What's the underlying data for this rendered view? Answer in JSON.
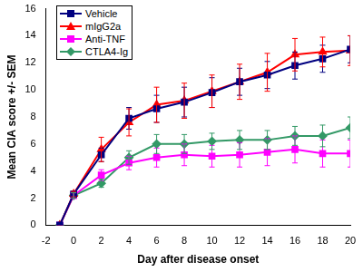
{
  "chart_data": {
    "type": "line",
    "x_label": "Day after disease onset",
    "y_label": "Mean CIA score +/- SEM",
    "x": [
      -1,
      0,
      2,
      4,
      6,
      8,
      10,
      12,
      14,
      16,
      18,
      20
    ],
    "series": [
      {
        "name": "Vehicle",
        "color": "#000080",
        "marker": "square",
        "values": [
          0,
          2.3,
          5.2,
          7.9,
          8.6,
          9.1,
          9.8,
          10.6,
          11.1,
          11.8,
          12.3,
          13.0
        ],
        "errors": [
          0,
          0.2,
          0.5,
          0.8,
          1.0,
          1.1,
          1.1,
          1.0,
          1.0,
          1.0,
          1.0,
          1.0
        ]
      },
      {
        "name": "mIgG2a",
        "color": "#ff0000",
        "marker": "triangle",
        "values": [
          0,
          2.3,
          5.6,
          7.6,
          8.9,
          9.2,
          9.9,
          10.6,
          11.3,
          12.6,
          12.8,
          12.9
        ],
        "errors": [
          0,
          0.2,
          0.9,
          1.0,
          1.3,
          1.3,
          1.2,
          1.3,
          1.4,
          1.2,
          1.1,
          1.1
        ]
      },
      {
        "name": "Anti-TNF",
        "color": "#ff00ff",
        "marker": "square",
        "values": [
          0,
          2.2,
          3.7,
          4.6,
          5.0,
          5.2,
          5.1,
          5.2,
          5.4,
          5.6,
          5.3,
          5.3
        ],
        "errors": [
          0,
          0.2,
          0.4,
          0.5,
          0.7,
          0.8,
          0.8,
          0.9,
          1.0,
          1.0,
          1.0,
          1.0
        ]
      },
      {
        "name": "CTLA4-Ig",
        "color": "#339966",
        "marker": "diamond",
        "values": [
          0,
          2.2,
          3.1,
          5.0,
          6.0,
          6.0,
          6.2,
          6.3,
          6.3,
          6.6,
          6.6,
          7.2
        ],
        "errors": [
          0,
          0.2,
          0.3,
          0.5,
          0.7,
          0.7,
          0.6,
          0.7,
          0.7,
          0.7,
          0.8,
          0.8
        ]
      }
    ],
    "xlim": [
      -2,
      20
    ],
    "xticks": [
      -2,
      0,
      2,
      4,
      6,
      8,
      10,
      12,
      14,
      16,
      18,
      20
    ],
    "ylim": [
      0,
      16
    ],
    "yticks": [
      0,
      2,
      4,
      6,
      8,
      10,
      12,
      14,
      16
    ],
    "grid": false,
    "legend": "upper left"
  }
}
